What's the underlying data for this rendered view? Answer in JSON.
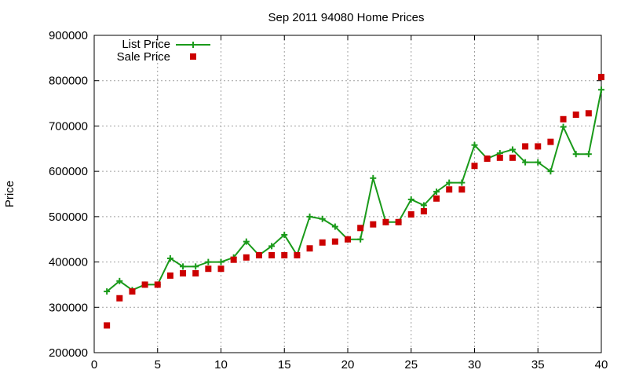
{
  "chart_data": {
    "type": "line",
    "title": "Sep 2011 94080 Home Prices",
    "xlabel": "",
    "ylabel": "Price",
    "xlim": [
      0,
      40
    ],
    "ylim": [
      200000,
      900000
    ],
    "x_ticks": [
      "0",
      "5",
      "10",
      "15",
      "20",
      "25",
      "30",
      "35",
      "40"
    ],
    "y_ticks": [
      "200000",
      "300000",
      "400000",
      "500000",
      "600000",
      "700000",
      "800000",
      "900000"
    ],
    "grid": true,
    "legend_position": "top-left",
    "series": [
      {
        "name": "List Price",
        "style": "line-with-plus-markers",
        "color": "#1a9a1a",
        "x": [
          1,
          2,
          3,
          4,
          5,
          6,
          7,
          8,
          9,
          10,
          11,
          12,
          13,
          14,
          15,
          16,
          17,
          18,
          19,
          20,
          21,
          22,
          23,
          24,
          25,
          26,
          27,
          28,
          29,
          30,
          31,
          32,
          33,
          34,
          35,
          36,
          37,
          38,
          39,
          40
        ],
        "values": [
          335000,
          358000,
          338000,
          350000,
          350000,
          408000,
          390000,
          390000,
          400000,
          400000,
          410000,
          445000,
          415000,
          435000,
          460000,
          415000,
          500000,
          495000,
          478000,
          450000,
          450000,
          585000,
          488000,
          488000,
          538000,
          525000,
          555000,
          575000,
          575000,
          658000,
          628000,
          640000,
          648000,
          620000,
          620000,
          600000,
          698000,
          638000,
          638000,
          780000
        ]
      },
      {
        "name": "Sale Price",
        "style": "square-markers",
        "color": "#cc0000",
        "x": [
          1,
          2,
          3,
          4,
          5,
          6,
          7,
          8,
          9,
          10,
          11,
          12,
          13,
          14,
          15,
          16,
          17,
          18,
          19,
          20,
          21,
          22,
          23,
          24,
          25,
          26,
          27,
          28,
          29,
          30,
          31,
          32,
          33,
          34,
          35,
          36,
          37,
          38,
          39,
          40
        ],
        "values": [
          260000,
          320000,
          335000,
          350000,
          350000,
          370000,
          375000,
          375000,
          385000,
          385000,
          405000,
          410000,
          415000,
          415000,
          415000,
          415000,
          430000,
          443000,
          445000,
          450000,
          475000,
          483000,
          488000,
          488000,
          505000,
          512000,
          540000,
          560000,
          560000,
          612000,
          628000,
          630000,
          630000,
          655000,
          655000,
          665000,
          715000,
          725000,
          728000,
          808000
        ]
      }
    ]
  }
}
